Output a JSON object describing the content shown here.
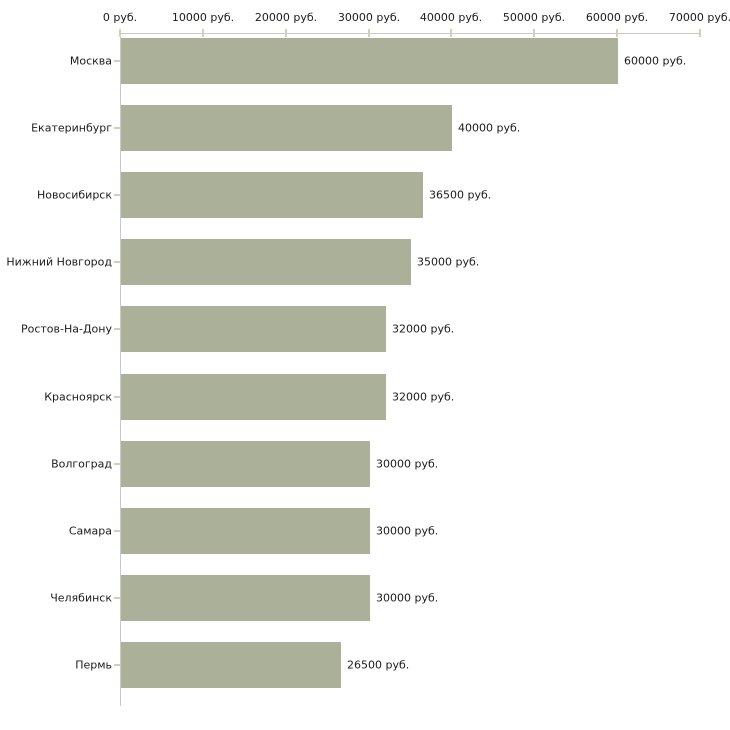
{
  "chart_data": {
    "type": "bar",
    "orientation": "horizontal",
    "title": "",
    "xlabel": "",
    "ylabel": "",
    "unit": "руб.",
    "grid": false,
    "legend": false,
    "xlim": [
      0,
      70000
    ],
    "x_tick_labels": [
      "0 руб.",
      "10000 руб.",
      "20000 руб.",
      "30000 руб.",
      "40000 руб.",
      "50000 руб.",
      "60000 руб.",
      "70000 руб."
    ],
    "categories": [
      "Москва",
      "Екатеринбург",
      "Новосибирск",
      "Нижний Новгород",
      "Ростов-На-Дону",
      "Красноярск",
      "Волгоград",
      "Самара",
      "Челябинск",
      "Пермь"
    ],
    "values": [
      60000,
      40000,
      36500,
      35000,
      32000,
      32000,
      30000,
      30000,
      30000,
      26500
    ],
    "value_labels": [
      "60000 руб.",
      "40000 руб.",
      "36500 руб.",
      "35000 руб.",
      "32000 руб.",
      "32000 руб.",
      "30000 руб.",
      "30000 руб.",
      "30000 руб.",
      "26500 руб."
    ]
  },
  "colors": {
    "bar": "#abb098",
    "axis": "#c9c9c9",
    "tick": "#d2d2b2",
    "text": "#1c1c1c",
    "background": "#ffffff"
  }
}
